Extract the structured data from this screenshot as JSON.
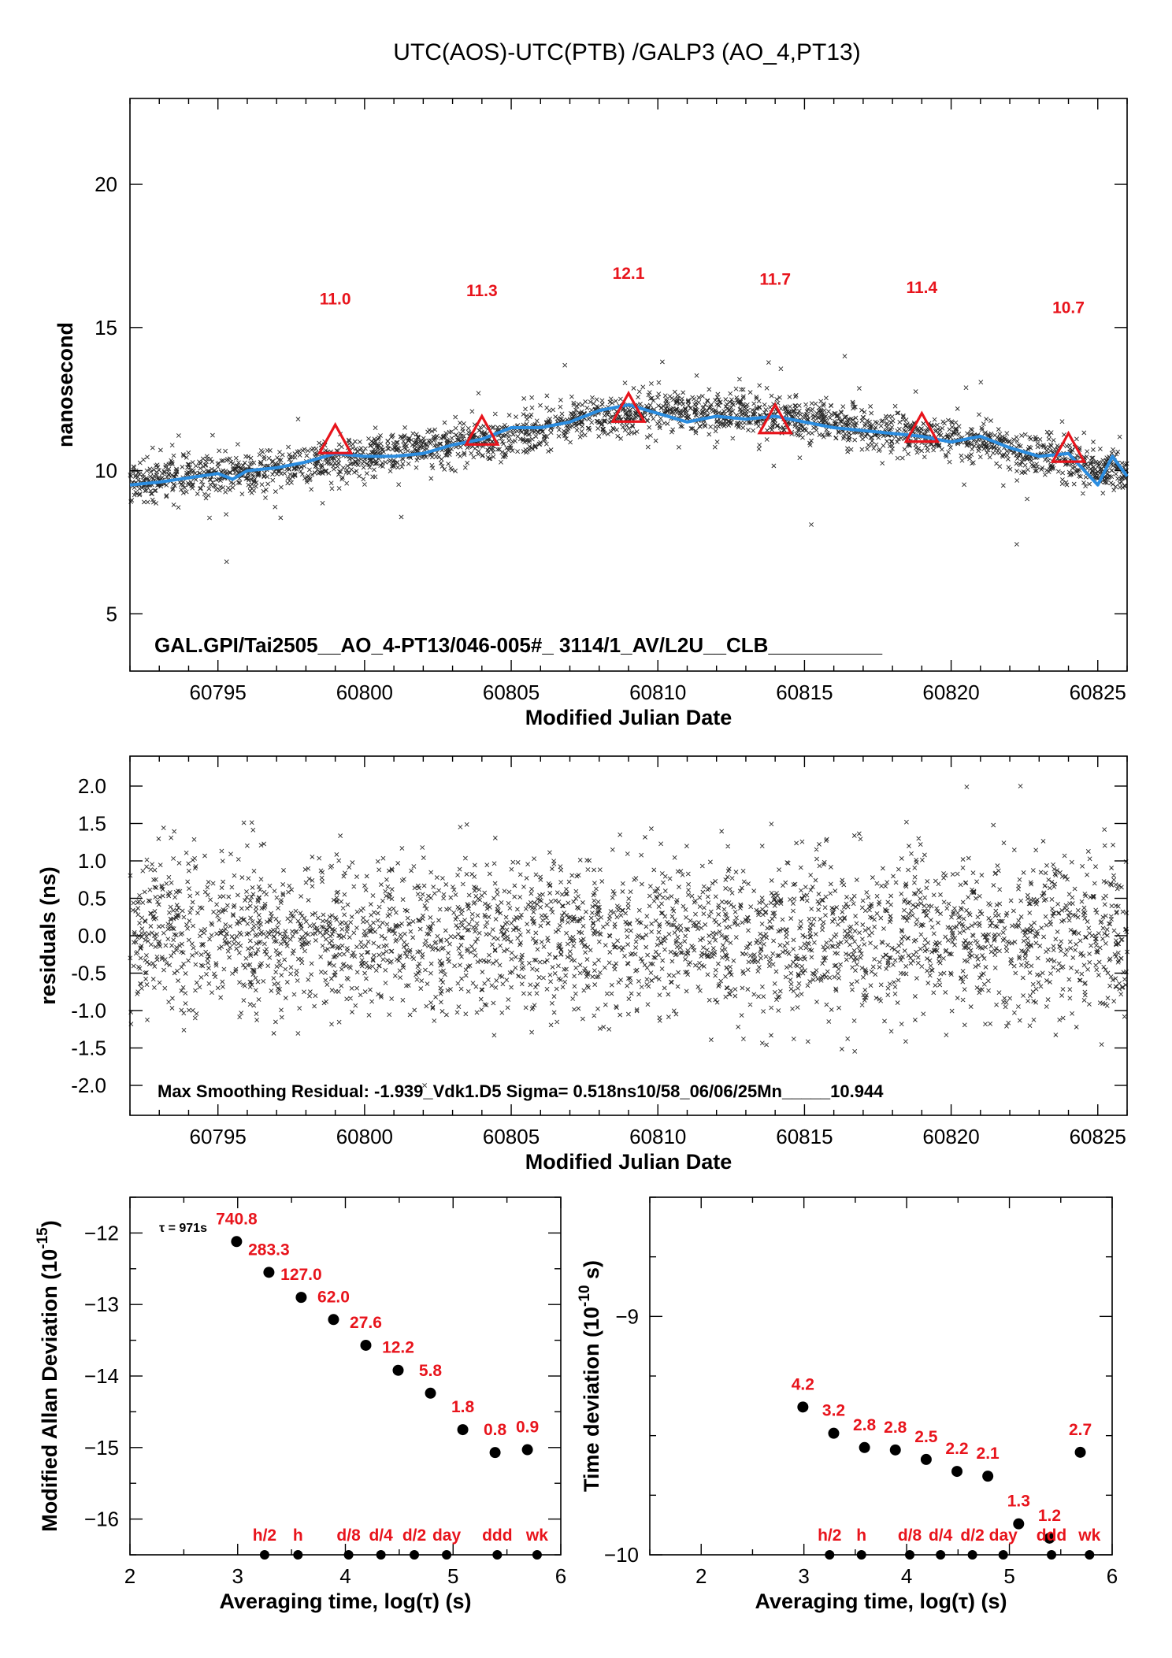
{
  "figure": {
    "title": "UTC(AOS)-UTC(PTB)  /GALP3  (AO_4,PT13)"
  },
  "chart_data": [
    {
      "type": "scatter",
      "name": "time-comparison",
      "xlabel": "Modified Julian Date",
      "ylabel": "nanosecond",
      "xlim": [
        60792,
        60826
      ],
      "ylim": [
        3,
        23
      ],
      "xticks": [
        "60795",
        "60800",
        "60805",
        "60810",
        "60815",
        "60820",
        "60825"
      ],
      "yticks": [
        "5",
        "10",
        "15",
        "20"
      ],
      "annotation": "GAL.GPI/Tai2505__AO_4-PT13/046-005#_  3114/1_AV/L2U__CLB__________",
      "colors": {
        "points": "#000000",
        "smooth": "#2b8de0",
        "markers": "#e8141c"
      },
      "smooth_curve": {
        "x": [
          60792,
          60793,
          60794,
          60795,
          60795.5,
          60796,
          60797,
          60798,
          60799,
          60800,
          60801,
          60802,
          60803,
          60804,
          60805,
          60806,
          60807,
          60808,
          60809,
          60810,
          60811,
          60812,
          60813,
          60814,
          60815,
          60816,
          60817,
          60818,
          60819,
          60820,
          60821,
          60822,
          60823,
          60824,
          60825,
          60825.5,
          60826
        ],
        "y": [
          9.5,
          9.6,
          9.75,
          9.9,
          9.7,
          10.0,
          10.1,
          10.3,
          10.6,
          10.5,
          10.5,
          10.6,
          10.9,
          11.1,
          11.5,
          11.5,
          11.7,
          12.1,
          12.3,
          12.0,
          11.7,
          11.9,
          11.8,
          11.9,
          11.7,
          11.5,
          11.4,
          11.3,
          11.2,
          11.0,
          11.2,
          10.8,
          10.5,
          10.6,
          9.5,
          10.5,
          9.8
        ]
      },
      "scatter_trend": {
        "x": [
          60792,
          60796,
          60800,
          60804,
          60808,
          60810,
          60814,
          60818,
          60822,
          60826
        ],
        "y": [
          9.6,
          9.9,
          10.5,
          11.0,
          11.9,
          12.1,
          11.9,
          11.4,
          10.8,
          9.8
        ],
        "spread": 0.35,
        "count": 3114
      },
      "markers": [
        {
          "x": 60799,
          "y": 11.0,
          "label": "11.0"
        },
        {
          "x": 60804,
          "y": 11.3,
          "label": "11.3"
        },
        {
          "x": 60809,
          "y": 12.1,
          "label": "12.1"
        },
        {
          "x": 60814,
          "y": 11.7,
          "label": "11.7"
        },
        {
          "x": 60819,
          "y": 11.4,
          "label": "11.4"
        },
        {
          "x": 60824,
          "y": 10.7,
          "label": "10.7"
        }
      ]
    },
    {
      "type": "scatter",
      "name": "residuals",
      "xlabel": "Modified Julian Date",
      "ylabel": "residuals (ns)",
      "xlim": [
        60792,
        60826
      ],
      "ylim": [
        -2.4,
        2.4
      ],
      "xticks": [
        "60795",
        "60800",
        "60805",
        "60810",
        "60815",
        "60820",
        "60825"
      ],
      "yticks": [
        "2.0",
        "1.5",
        "1.0",
        "0.5",
        "0.0",
        "-0.5",
        "-1.0",
        "-1.5",
        "-2.0"
      ],
      "annotation": "Max Smoothing Residual: -1.939_Vdk1.D5  Sigma= 0.518ns10/58_06/06/25Mn_____10.944",
      "sigma": 0.518
    },
    {
      "type": "scatter",
      "name": "modified-allan-deviation",
      "xlabel": "Averaging time, log(τ) (s)",
      "ylabel": "Modified Allan Deviation (10",
      "ylabel_exp": "-15",
      "ylabel_end": ")",
      "xlim": [
        2,
        6
      ],
      "ylim": [
        -16.5,
        -11.5
      ],
      "xticks": [
        "2",
        "3",
        "4",
        "5",
        "6"
      ],
      "yticks": [
        "-12",
        "-13",
        "-14",
        "-15",
        "-16"
      ],
      "tau_note": "τ = 971s",
      "points": [
        {
          "x": 2.99,
          "y": -12.12,
          "label": "740.8"
        },
        {
          "x": 3.29,
          "y": -12.55,
          "label": "283.3"
        },
        {
          "x": 3.59,
          "y": -12.9,
          "label": "127.0"
        },
        {
          "x": 3.89,
          "y": -13.21,
          "label": "62.0"
        },
        {
          "x": 4.19,
          "y": -13.57,
          "label": "27.6"
        },
        {
          "x": 4.49,
          "y": -13.92,
          "label": "12.2"
        },
        {
          "x": 4.79,
          "y": -14.24,
          "label": "5.8"
        },
        {
          "x": 5.09,
          "y": -14.75,
          "label": "1.8"
        },
        {
          "x": 5.39,
          "y": -15.07,
          "label": "0.8"
        },
        {
          "x": 5.69,
          "y": -15.03,
          "label": "0.9"
        }
      ],
      "ref_marks": [
        {
          "x": 3.25,
          "label": "h/2"
        },
        {
          "x": 3.56,
          "label": "h"
        },
        {
          "x": 4.03,
          "label": "d/8"
        },
        {
          "x": 4.33,
          "label": "d/4"
        },
        {
          "x": 4.64,
          "label": "d/2"
        },
        {
          "x": 4.94,
          "label": "day"
        },
        {
          "x": 5.41,
          "label": "ddd"
        },
        {
          "x": 5.78,
          "label": "wk"
        }
      ]
    },
    {
      "type": "scatter",
      "name": "time-deviation",
      "xlabel": "Averaging time, log(τ) (s)",
      "ylabel": "Time deviation (10",
      "ylabel_exp": "-10",
      "ylabel_end": " s)",
      "xlim": [
        1.5,
        6
      ],
      "ylim": [
        -10,
        -8.5
      ],
      "xticks": [
        "2",
        "3",
        "4",
        "5",
        "6"
      ],
      "yticks": [
        "-9",
        "-10"
      ],
      "points": [
        {
          "x": 2.99,
          "y": -9.38,
          "label": "4.2"
        },
        {
          "x": 3.29,
          "y": -9.49,
          "label": "3.2"
        },
        {
          "x": 3.59,
          "y": -9.55,
          "label": "2.8"
        },
        {
          "x": 3.89,
          "y": -9.56,
          "label": "2.8"
        },
        {
          "x": 4.19,
          "y": -9.6,
          "label": "2.5"
        },
        {
          "x": 4.49,
          "y": -9.65,
          "label": "2.2"
        },
        {
          "x": 4.79,
          "y": -9.67,
          "label": "2.1"
        },
        {
          "x": 5.09,
          "y": -9.87,
          "label": "1.3"
        },
        {
          "x": 5.39,
          "y": -9.93,
          "label": "1.2"
        },
        {
          "x": 5.69,
          "y": -9.57,
          "label": "2.7"
        }
      ],
      "ref_marks": [
        {
          "x": 3.25,
          "label": "h/2"
        },
        {
          "x": 3.56,
          "label": "h"
        },
        {
          "x": 4.03,
          "label": "d/8"
        },
        {
          "x": 4.33,
          "label": "d/4"
        },
        {
          "x": 4.64,
          "label": "d/2"
        },
        {
          "x": 4.94,
          "label": "day"
        },
        {
          "x": 5.41,
          "label": "ddd"
        },
        {
          "x": 5.78,
          "label": "wk"
        }
      ]
    }
  ]
}
